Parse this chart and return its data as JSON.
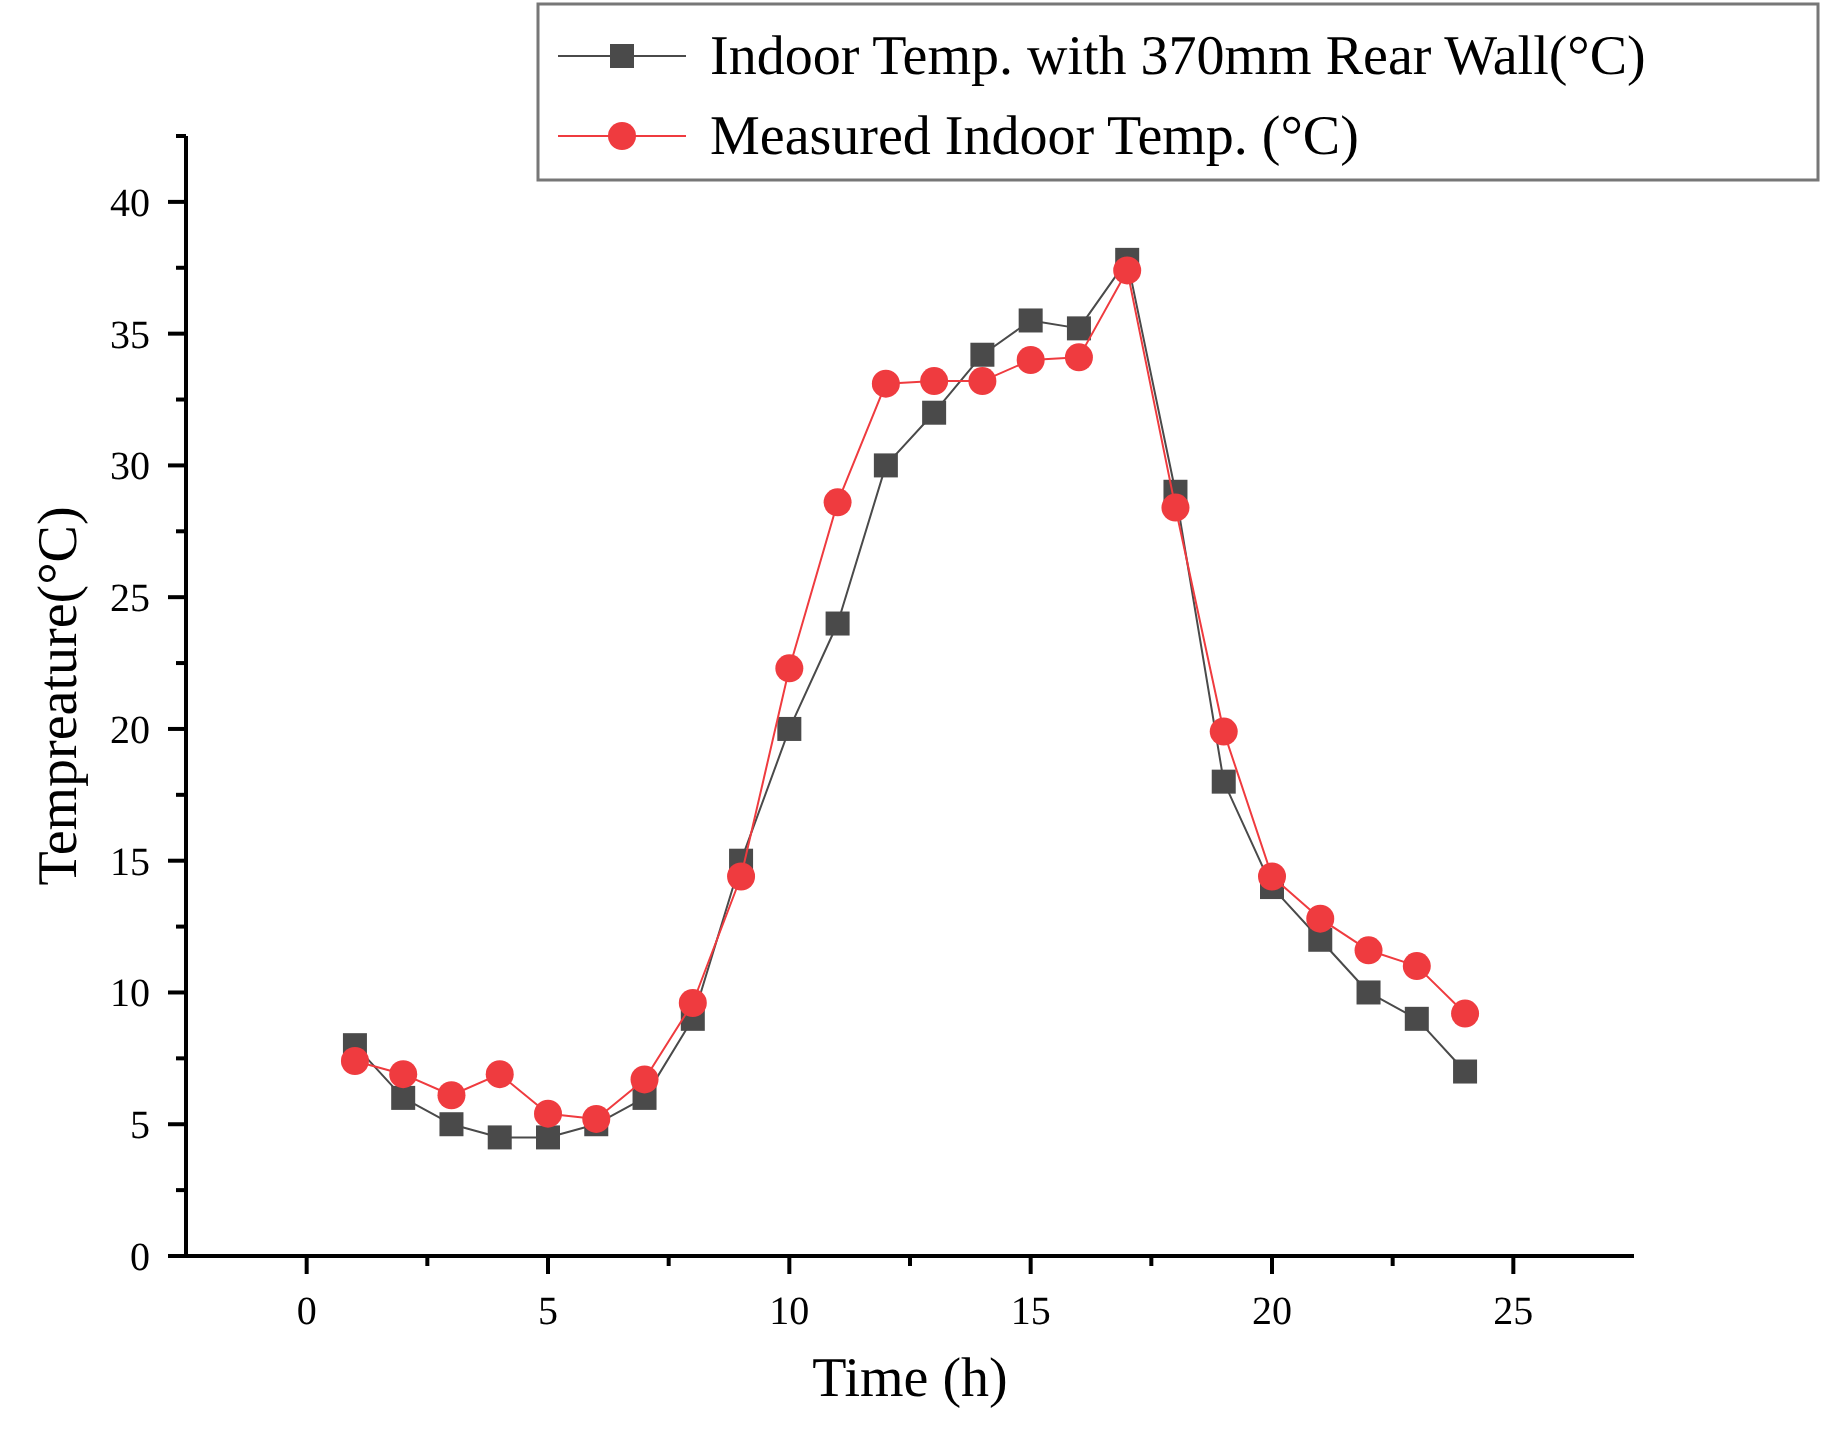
{
  "chart_data": {
    "type": "line",
    "xlabel": "Time (h)",
    "ylabel": "Tempreature(°C)",
    "x": [
      1,
      2,
      3,
      4,
      5,
      6,
      7,
      8,
      9,
      10,
      11,
      12,
      13,
      14,
      15,
      16,
      17,
      18,
      19,
      20,
      21,
      22,
      23,
      24
    ],
    "series": [
      {
        "name": "Indoor Temp. with 370mm Rear Wall(°C)",
        "color": "#4a4a4a",
        "marker": "square",
        "values": [
          8,
          6,
          5,
          4.5,
          4.5,
          5,
          6,
          9,
          15,
          20,
          24,
          30,
          32,
          34.2,
          35.5,
          35.2,
          37.8,
          29,
          18,
          14,
          12,
          10,
          9,
          7
        ]
      },
      {
        "name": "Measured Indoor Temp. (°C)",
        "color": "#ef3b3f",
        "marker": "circle",
        "values": [
          7.4,
          6.9,
          6.1,
          6.9,
          5.4,
          5.2,
          6.7,
          9.6,
          14.4,
          22.3,
          28.6,
          33.1,
          33.2,
          33.2,
          34.0,
          34.1,
          37.4,
          28.4,
          19.9,
          14.4,
          12.8,
          11.6,
          11.0,
          9.2
        ]
      }
    ],
    "xlim": [
      -2.5,
      27.5
    ],
    "xticks": [
      0,
      5,
      10,
      15,
      20,
      25
    ],
    "ylim": [
      0,
      42.5
    ],
    "yticks": [
      0,
      5,
      10,
      15,
      20,
      25,
      30,
      35,
      40
    ],
    "grid": false,
    "legend": "top right",
    "line_style": "solid"
  }
}
